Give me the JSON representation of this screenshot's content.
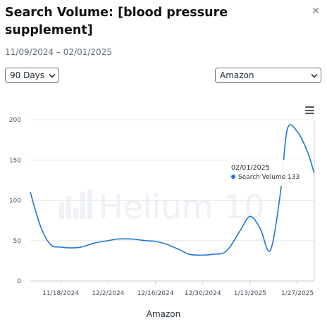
{
  "header": {
    "title": "Search Volume: [blood pressure supplement]",
    "date_range": "11/09/2024 – 02/01/2025"
  },
  "controls": {
    "period": {
      "selected": "90 Days",
      "icon": "chevron-down-icon"
    },
    "marketplace": {
      "selected": "Amazon",
      "icon": "chevron-down-icon"
    },
    "close_icon": "close-icon",
    "menu_icon": "hamburger-menu-icon"
  },
  "watermark": "Helium 10",
  "tooltip": {
    "date": "02/01/2025",
    "series": "Search Volume",
    "value": "133"
  },
  "colors": {
    "series": "#1f77d4",
    "grid": "#e6e9ee"
  },
  "chart_data": {
    "type": "line",
    "title": "",
    "xlabel": "Amazon",
    "ylabel": "",
    "ylim": [
      0,
      200
    ],
    "yticks": [
      0,
      50,
      100,
      150,
      200
    ],
    "x_ticks": [
      "11/18/2024",
      "12/2/2024",
      "12/16/2024",
      "12/30/2024",
      "1/13/2025",
      "1/27/2025"
    ],
    "grid": true,
    "series": [
      {
        "name": "Search Volume",
        "x": [
          "11/9/2024",
          "11/12/2024",
          "11/15/2024",
          "11/18/2024",
          "11/21/2024",
          "11/24/2024",
          "11/28/2024",
          "12/2/2024",
          "12/5/2024",
          "12/9/2024",
          "12/13/2024",
          "12/16/2024",
          "12/19/2024",
          "12/23/2024",
          "12/26/2024",
          "12/30/2024",
          "1/2/2025",
          "1/6/2025",
          "1/10/2025",
          "1/13/2025",
          "1/16/2025",
          "1/19/2025",
          "1/22/2025",
          "1/24/2025",
          "1/27/2025",
          "1/30/2025",
          "2/1/2025"
        ],
        "y": [
          110,
          68,
          45,
          42,
          41,
          42,
          47,
          50,
          52,
          52,
          50,
          49,
          46,
          39,
          33,
          32,
          33,
          37,
          62,
          80,
          65,
          38,
          110,
          188,
          185,
          160,
          133
        ]
      }
    ]
  }
}
